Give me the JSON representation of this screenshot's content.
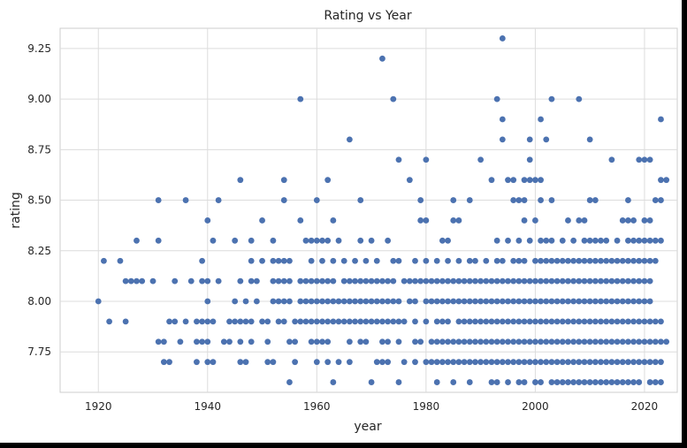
{
  "chart_data": {
    "type": "scatter",
    "title": "Rating vs Year",
    "xlabel": "year",
    "ylabel": "rating",
    "xlim": [
      1913,
      2026
    ],
    "ylim": [
      7.55,
      9.35
    ],
    "xticks": [
      1920,
      1940,
      1960,
      1980,
      2000,
      2020
    ],
    "yticks": [
      7.75,
      8.0,
      8.25,
      8.5,
      8.75,
      9.0,
      9.25
    ],
    "grid": true,
    "legend": "none",
    "color": "#4c72b0",
    "series_columns": {
      "ratings": [
        7.6,
        7.7,
        7.8,
        7.9,
        8.0,
        8.1,
        8.2,
        8.3,
        8.4,
        8.5,
        8.6,
        8.7,
        8.8,
        8.9,
        9.0,
        9.2,
        9.3
      ],
      "years_by_rating": {
        "7.6": [
          1955,
          1963,
          1970,
          1975,
          1982,
          1985,
          1988,
          1992,
          1993,
          1995,
          1997,
          1998,
          2000,
          2001,
          2003,
          2004,
          2005,
          2006,
          2007,
          2008,
          2009,
          2010,
          2011,
          2012,
          2013,
          2014,
          2015,
          2016,
          2017,
          2018,
          2019,
          2021,
          2022,
          2023
        ],
        "7.7": [
          1932,
          1933,
          1938,
          1940,
          1941,
          1946,
          1947,
          1951,
          1952,
          1956,
          1960,
          1962,
          1964,
          1966,
          1971,
          1972,
          1973,
          1976,
          1978,
          1980,
          1981,
          1982,
          1983,
          1984,
          1985,
          1986,
          1987,
          1988,
          1989,
          1990,
          1991,
          1992,
          1993,
          1994,
          1995,
          1996,
          1997,
          1998,
          1999,
          2000,
          2001,
          2002,
          2003,
          2004,
          2005,
          2006,
          2007,
          2008,
          2009,
          2010,
          2011,
          2012,
          2013,
          2014,
          2015,
          2016,
          2017,
          2018,
          2019,
          2020,
          2021,
          2022,
          2023
        ],
        "7.8": [
          1931,
          1932,
          1935,
          1938,
          1939,
          1940,
          1943,
          1944,
          1946,
          1948,
          1951,
          1955,
          1956,
          1959,
          1960,
          1961,
          1962,
          1966,
          1968,
          1969,
          1972,
          1973,
          1975,
          1978,
          1979,
          1981,
          1982,
          1983,
          1984,
          1985,
          1986,
          1987,
          1988,
          1989,
          1990,
          1991,
          1992,
          1993,
          1994,
          1995,
          1996,
          1997,
          1998,
          1999,
          2000,
          2001,
          2002,
          2003,
          2004,
          2005,
          2006,
          2007,
          2008,
          2009,
          2010,
          2011,
          2012,
          2013,
          2014,
          2015,
          2016,
          2017,
          2018,
          2019,
          2020,
          2021,
          2022,
          2023,
          2024
        ],
        "7.9": [
          1922,
          1925,
          1933,
          1934,
          1936,
          1938,
          1939,
          1940,
          1941,
          1944,
          1945,
          1946,
          1947,
          1948,
          1950,
          1951,
          1953,
          1954,
          1956,
          1957,
          1958,
          1959,
          1960,
          1961,
          1962,
          1963,
          1964,
          1965,
          1966,
          1967,
          1968,
          1969,
          1970,
          1971,
          1972,
          1973,
          1974,
          1975,
          1976,
          1978,
          1980,
          1982,
          1983,
          1984,
          1986,
          1987,
          1988,
          1989,
          1990,
          1991,
          1992,
          1993,
          1994,
          1995,
          1996,
          1997,
          1998,
          1999,
          2000,
          2001,
          2002,
          2003,
          2004,
          2005,
          2006,
          2007,
          2008,
          2009,
          2010,
          2011,
          2012,
          2013,
          2014,
          2015,
          2016,
          2017,
          2018,
          2019,
          2020,
          2021,
          2022,
          2023
        ],
        "8.0": [
          1920,
          1940,
          1945,
          1947,
          1949,
          1952,
          1953,
          1954,
          1955,
          1957,
          1958,
          1959,
          1960,
          1961,
          1962,
          1963,
          1964,
          1965,
          1966,
          1967,
          1968,
          1969,
          1970,
          1971,
          1972,
          1973,
          1974,
          1975,
          1977,
          1978,
          1980,
          1981,
          1982,
          1983,
          1984,
          1985,
          1986,
          1987,
          1988,
          1989,
          1990,
          1991,
          1992,
          1993,
          1994,
          1995,
          1996,
          1997,
          1998,
          1999,
          2000,
          2001,
          2002,
          2003,
          2004,
          2005,
          2006,
          2007,
          2008,
          2009,
          2010,
          2011,
          2012,
          2013,
          2014,
          2015,
          2016,
          2017,
          2018,
          2019,
          2020,
          2021
        ],
        "8.1": [
          1925,
          1926,
          1927,
          1928,
          1930,
          1934,
          1937,
          1939,
          1940,
          1942,
          1946,
          1948,
          1949,
          1952,
          1953,
          1954,
          1955,
          1957,
          1958,
          1959,
          1960,
          1961,
          1962,
          1963,
          1965,
          1966,
          1967,
          1968,
          1969,
          1970,
          1971,
          1972,
          1973,
          1974,
          1976,
          1977,
          1978,
          1979,
          1980,
          1981,
          1982,
          1983,
          1984,
          1985,
          1986,
          1987,
          1988,
          1989,
          1990,
          1991,
          1992,
          1993,
          1994,
          1995,
          1996,
          1997,
          1998,
          1999,
          2000,
          2001,
          2002,
          2003,
          2004,
          2005,
          2006,
          2007,
          2008,
          2009,
          2010,
          2011,
          2012,
          2013,
          2014,
          2015,
          2016,
          2017,
          2018,
          2019,
          2020,
          2021
        ],
        "8.2": [
          1921,
          1924,
          1939,
          1948,
          1950,
          1952,
          1953,
          1954,
          1955,
          1959,
          1961,
          1963,
          1965,
          1967,
          1969,
          1971,
          1974,
          1975,
          1978,
          1980,
          1982,
          1984,
          1986,
          1988,
          1989,
          1991,
          1993,
          1994,
          1996,
          1997,
          1998,
          2000,
          2001,
          2002,
          2003,
          2004,
          2005,
          2006,
          2007,
          2008,
          2009,
          2010,
          2011,
          2012,
          2013,
          2014,
          2015,
          2016,
          2017,
          2018,
          2019,
          2020,
          2021,
          2022
        ],
        "8.3": [
          1927,
          1931,
          1941,
          1945,
          1948,
          1952,
          1958,
          1959,
          1960,
          1961,
          1962,
          1964,
          1968,
          1970,
          1973,
          1983,
          1984,
          1993,
          1995,
          1997,
          1999,
          2001,
          2002,
          2003,
          2005,
          2007,
          2009,
          2010,
          2011,
          2012,
          2013,
          2015,
          2017,
          2018,
          2019,
          2020,
          2021,
          2022,
          2023
        ],
        "8.4": [
          1940,
          1950,
          1957,
          1963,
          1979,
          1980,
          1985,
          1986,
          1998,
          2000,
          2006,
          2008,
          2009,
          2016,
          2017,
          2018,
          2020,
          2021
        ],
        "8.5": [
          1931,
          1936,
          1942,
          1954,
          1960,
          1968,
          1979,
          1985,
          1988,
          1996,
          1997,
          1998,
          2001,
          2003,
          2010,
          2011,
          2017,
          2022,
          2023
        ],
        "8.6": [
          1946,
          1954,
          1962,
          1977,
          1992,
          1995,
          1996,
          1998,
          1999,
          2000,
          2001,
          2023,
          2024
        ],
        "8.7": [
          1975,
          1980,
          1990,
          1999,
          2014,
          2019,
          2020,
          2021
        ],
        "8.8": [
          1966,
          1994,
          1999,
          2002,
          2010
        ],
        "8.9": [
          1994,
          2001,
          2023
        ],
        "9.0": [
          1957,
          1974,
          1993,
          2003,
          2008
        ],
        "9.2": [
          1972
        ],
        "9.3": [
          1994
        ]
      }
    }
  }
}
